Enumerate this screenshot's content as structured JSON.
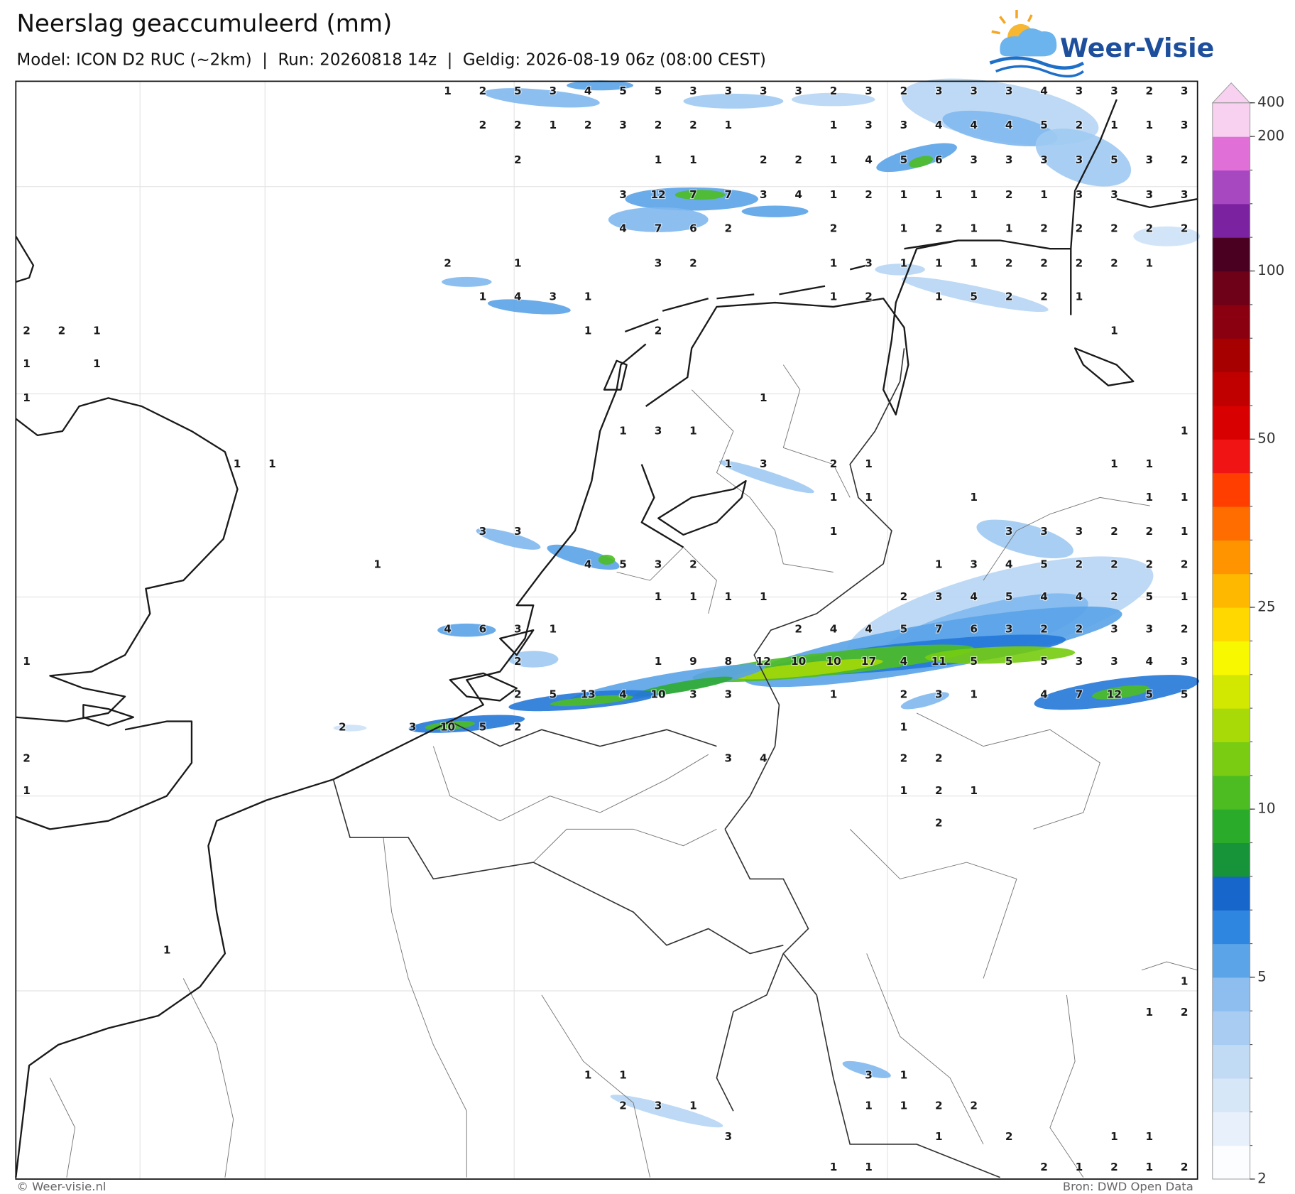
{
  "header": {
    "title": "Neerslag geaccumuleerd (mm)",
    "subtitle": "Model: ICON D2 RUC (~2km)  |  Run: 20260818 14z  |  Geldig: 2026-08-19 06z (08:00 CEST)"
  },
  "logo": {
    "text": "Weer-Visie"
  },
  "map": {
    "values": [
      [
        null,
        null,
        null,
        null,
        null,
        null,
        null,
        null,
        null,
        null,
        null,
        null,
        1,
        2,
        5,
        3,
        4,
        5,
        5,
        3,
        3,
        3,
        3,
        2,
        3,
        2,
        3,
        3,
        3,
        4,
        3,
        3,
        2,
        3
      ],
      [
        null,
        null,
        null,
        null,
        null,
        null,
        null,
        null,
        null,
        null,
        null,
        null,
        null,
        2,
        2,
        1,
        2,
        3,
        2,
        2,
        1,
        null,
        null,
        1,
        3,
        3,
        4,
        4,
        4,
        5,
        2,
        1,
        1,
        3
      ],
      [
        null,
        null,
        null,
        null,
        null,
        null,
        null,
        null,
        null,
        null,
        null,
        null,
        null,
        null,
        2,
        null,
        null,
        null,
        1,
        1,
        null,
        2,
        2,
        1,
        4,
        5,
        6,
        3,
        3,
        3,
        3,
        5,
        3,
        2
      ],
      [
        null,
        null,
        null,
        null,
        null,
        null,
        null,
        null,
        null,
        null,
        null,
        null,
        null,
        null,
        null,
        null,
        null,
        3,
        12,
        7,
        7,
        3,
        4,
        1,
        2,
        1,
        1,
        1,
        2,
        1,
        3,
        3,
        3,
        3
      ],
      [
        null,
        null,
        null,
        null,
        null,
        null,
        null,
        null,
        null,
        null,
        null,
        null,
        null,
        null,
        null,
        null,
        null,
        4,
        7,
        6,
        2,
        null,
        null,
        2,
        null,
        1,
        2,
        1,
        1,
        2,
        2,
        2,
        2,
        2
      ],
      [
        null,
        null,
        null,
        null,
        null,
        null,
        null,
        null,
        null,
        null,
        null,
        null,
        2,
        null,
        1,
        null,
        null,
        null,
        3,
        2,
        null,
        null,
        null,
        1,
        3,
        1,
        1,
        1,
        2,
        2,
        2,
        2,
        1,
        null
      ],
      [
        null,
        null,
        null,
        null,
        null,
        null,
        null,
        null,
        null,
        null,
        null,
        null,
        null,
        1,
        4,
        3,
        1,
        null,
        null,
        null,
        null,
        null,
        null,
        1,
        2,
        null,
        1,
        5,
        2,
        2,
        1,
        null,
        null,
        null
      ],
      [
        2,
        2,
        1,
        null,
        null,
        null,
        null,
        null,
        null,
        null,
        null,
        null,
        null,
        null,
        null,
        null,
        1,
        null,
        2,
        null,
        null,
        null,
        null,
        null,
        null,
        null,
        null,
        null,
        null,
        null,
        null,
        1,
        null,
        null
      ],
      [
        1,
        null,
        1,
        null,
        null,
        null,
        null,
        null,
        null,
        null,
        null,
        null,
        null,
        null,
        null,
        null,
        null,
        null,
        null,
        null,
        null,
        null,
        null,
        null,
        null,
        null,
        null,
        null,
        null,
        null,
        null,
        null,
        null,
        null
      ],
      [
        1,
        null,
        null,
        null,
        null,
        null,
        null,
        null,
        null,
        null,
        null,
        null,
        null,
        null,
        null,
        null,
        null,
        null,
        null,
        null,
        null,
        1,
        null,
        null,
        null,
        null,
        null,
        null,
        null,
        null,
        null,
        null,
        null,
        null
      ],
      [
        null,
        null,
        null,
        null,
        null,
        null,
        null,
        null,
        null,
        null,
        null,
        null,
        null,
        null,
        null,
        null,
        null,
        1,
        3,
        1,
        null,
        null,
        null,
        null,
        null,
        null,
        null,
        null,
        null,
        null,
        null,
        null,
        null,
        1
      ],
      [
        null,
        null,
        null,
        null,
        null,
        null,
        1,
        1,
        null,
        null,
        null,
        null,
        null,
        null,
        null,
        null,
        null,
        null,
        null,
        null,
        1,
        3,
        null,
        2,
        1,
        null,
        null,
        null,
        null,
        null,
        null,
        1,
        1,
        null
      ],
      [
        null,
        null,
        null,
        null,
        null,
        null,
        null,
        null,
        null,
        null,
        null,
        null,
        null,
        null,
        null,
        null,
        null,
        null,
        null,
        null,
        null,
        null,
        null,
        1,
        1,
        null,
        null,
        1,
        null,
        null,
        null,
        null,
        1,
        1
      ],
      [
        null,
        null,
        null,
        null,
        null,
        null,
        null,
        null,
        null,
        null,
        null,
        null,
        null,
        3,
        3,
        null,
        null,
        null,
        null,
        null,
        null,
        null,
        null,
        1,
        null,
        null,
        null,
        null,
        3,
        3,
        3,
        2,
        2,
        1
      ],
      [
        null,
        null,
        null,
        null,
        null,
        null,
        null,
        null,
        null,
        null,
        1,
        null,
        null,
        null,
        null,
        null,
        4,
        5,
        3,
        2,
        null,
        null,
        null,
        null,
        null,
        null,
        1,
        3,
        4,
        5,
        2,
        2,
        2,
        2
      ],
      [
        null,
        null,
        null,
        null,
        null,
        null,
        null,
        null,
        null,
        null,
        null,
        null,
        null,
        null,
        null,
        null,
        null,
        null,
        1,
        1,
        1,
        1,
        null,
        null,
        null,
        2,
        3,
        4,
        5,
        4,
        4,
        2,
        5,
        1
      ],
      [
        null,
        null,
        null,
        null,
        null,
        null,
        null,
        null,
        null,
        null,
        null,
        null,
        4,
        6,
        3,
        1,
        null,
        null,
        null,
        null,
        null,
        null,
        2,
        4,
        4,
        5,
        7,
        6,
        3,
        2,
        2,
        3,
        3,
        2
      ],
      [
        1,
        null,
        null,
        null,
        null,
        null,
        null,
        null,
        null,
        null,
        null,
        null,
        null,
        null,
        2,
        null,
        null,
        null,
        1,
        9,
        8,
        12,
        10,
        10,
        17,
        4,
        11,
        5,
        5,
        5,
        3,
        3,
        4,
        3
      ],
      [
        null,
        null,
        null,
        null,
        null,
        null,
        null,
        null,
        null,
        null,
        null,
        null,
        null,
        null,
        2,
        5,
        13,
        4,
        10,
        3,
        3,
        null,
        null,
        1,
        null,
        2,
        3,
        1,
        null,
        4,
        7,
        12,
        5,
        5
      ],
      [
        null,
        null,
        null,
        null,
        null,
        null,
        null,
        null,
        null,
        2,
        null,
        3,
        10,
        5,
        2,
        null,
        null,
        null,
        null,
        null,
        null,
        null,
        null,
        null,
        null,
        1,
        null,
        null,
        null,
        null,
        null,
        null,
        null,
        null
      ],
      [
        2,
        null,
        null,
        null,
        null,
        null,
        null,
        null,
        null,
        null,
        null,
        null,
        null,
        null,
        null,
        null,
        null,
        null,
        null,
        null,
        3,
        4,
        null,
        null,
        null,
        2,
        2,
        null,
        null,
        null,
        null,
        null,
        null,
        null
      ],
      [
        1,
        null,
        null,
        null,
        null,
        null,
        null,
        null,
        null,
        null,
        null,
        null,
        null,
        null,
        null,
        null,
        null,
        null,
        null,
        null,
        null,
        null,
        null,
        null,
        null,
        1,
        2,
        1,
        null,
        null,
        null,
        null,
        null,
        null
      ],
      [
        null,
        null,
        null,
        null,
        null,
        null,
        null,
        null,
        null,
        null,
        null,
        null,
        null,
        null,
        null,
        null,
        null,
        null,
        null,
        null,
        null,
        null,
        null,
        null,
        null,
        null,
        2,
        null,
        null,
        null,
        null,
        null,
        null,
        null
      ],
      [
        null,
        null,
        null,
        null,
        1,
        null,
        null,
        null,
        null,
        null,
        null,
        null,
        null,
        null,
        null,
        null,
        null,
        null,
        null,
        null,
        null,
        null,
        null,
        null,
        null,
        null,
        null,
        null,
        null,
        null,
        null,
        null,
        null,
        null
      ],
      [
        null,
        null,
        null,
        null,
        null,
        null,
        null,
        null,
        null,
        null,
        null,
        null,
        null,
        null,
        null,
        null,
        null,
        null,
        null,
        null,
        null,
        null,
        null,
        null,
        null,
        null,
        null,
        null,
        null,
        null,
        null,
        null,
        null,
        1
      ],
      [
        null,
        null,
        null,
        null,
        null,
        null,
        null,
        null,
        null,
        null,
        null,
        null,
        null,
        null,
        null,
        null,
        null,
        null,
        null,
        null,
        null,
        null,
        null,
        null,
        null,
        null,
        null,
        null,
        null,
        null,
        null,
        null,
        1,
        2
      ],
      [
        null,
        null,
        null,
        null,
        null,
        null,
        null,
        null,
        null,
        null,
        null,
        null,
        null,
        null,
        null,
        null,
        1,
        1,
        null,
        null,
        null,
        null,
        null,
        null,
        3,
        1,
        null,
        null,
        null,
        null,
        null,
        null,
        null,
        null
      ],
      [
        null,
        null,
        null,
        null,
        null,
        null,
        null,
        null,
        null,
        null,
        null,
        null,
        null,
        null,
        null,
        null,
        null,
        2,
        3,
        1,
        null,
        null,
        null,
        null,
        1,
        1,
        2,
        2,
        null,
        null,
        null,
        null,
        null,
        null
      ],
      [
        null,
        null,
        null,
        null,
        null,
        null,
        null,
        null,
        null,
        null,
        null,
        null,
        null,
        null,
        null,
        null,
        null,
        null,
        null,
        null,
        3,
        null,
        null,
        null,
        null,
        null,
        1,
        null,
        2,
        null,
        null,
        1,
        1,
        null
      ],
      [
        null,
        null,
        null,
        null,
        null,
        null,
        null,
        null,
        null,
        null,
        null,
        null,
        null,
        null,
        null,
        null,
        null,
        null,
        null,
        null,
        null,
        null,
        null,
        1,
        1,
        null,
        null,
        null,
        null,
        2,
        1,
        2,
        1,
        2
      ]
    ]
  },
  "colorbar": {
    "levels": [
      2,
      2.5,
      3,
      3.5,
      4,
      4.5,
      5,
      6,
      7,
      8,
      9,
      10,
      12,
      14,
      16,
      18,
      20,
      25,
      30,
      35,
      40,
      45,
      50,
      60,
      70,
      80,
      90,
      100,
      125,
      150,
      175,
      200,
      400
    ],
    "colors": [
      "#fbfdff",
      "#e8f1fb",
      "#d6e7f8",
      "#c2dbf5",
      "#a9cdf2",
      "#8ebef0",
      "#5ba4e8",
      "#2f86e0",
      "#1766cc",
      "#17933a",
      "#2aab2a",
      "#4cbc22",
      "#7acc12",
      "#a8da08",
      "#d2e800",
      "#f8f800",
      "#ffd800",
      "#ffb800",
      "#ff9400",
      "#ff6c00",
      "#ff3e00",
      "#f01414",
      "#d80000",
      "#c00000",
      "#a60000",
      "#8a0010",
      "#6e0018",
      "#4a0020",
      "#7a22a0",
      "#a848c0",
      "#e070d8",
      "#f8d0f0"
    ],
    "ticks": [
      2,
      5,
      10,
      25,
      50,
      100,
      200,
      400
    ]
  },
  "footer": {
    "credit": "© Weer-visie.nl",
    "source": "Bron: DWD Open Data"
  }
}
